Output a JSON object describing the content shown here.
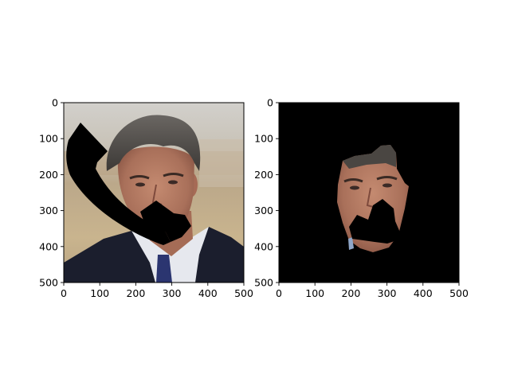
{
  "panels": [
    {
      "name": "original-image",
      "content": "photo-with-phone-occlusion",
      "x_ticks": [
        "0",
        "100",
        "200",
        "300",
        "400",
        "500"
      ],
      "y_ticks": [
        "0",
        "100",
        "200",
        "300",
        "400",
        "500"
      ],
      "xlim": [
        0,
        500
      ],
      "ylim": [
        500,
        0
      ]
    },
    {
      "name": "masked-face-image",
      "content": "face-segmentation-on-black",
      "x_ticks": [
        "0",
        "100",
        "200",
        "300",
        "400",
        "500"
      ],
      "y_ticks": [
        "0",
        "100",
        "200",
        "300",
        "400",
        "500"
      ],
      "xlim": [
        0,
        500
      ],
      "ylim": [
        500,
        0
      ]
    }
  ],
  "colors": {
    "background": "#ffffff",
    "mask_background": "#000000",
    "suit": "#1a1d2c",
    "skin": "#b27a62",
    "hair": "#4a4744",
    "backdrop_sky": "#c9c6c0",
    "backdrop_ground": "#c4ad8a",
    "occluder": "#000000"
  }
}
